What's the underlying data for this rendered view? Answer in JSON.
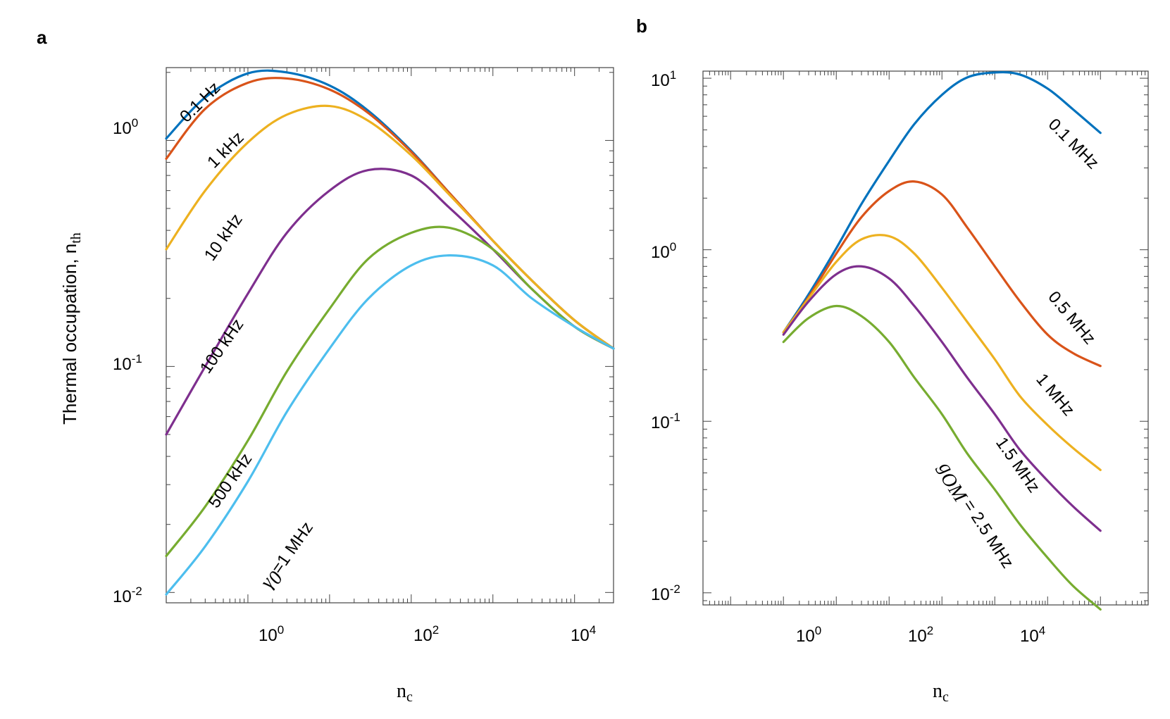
{
  "chart_data": [
    {
      "panel": "a",
      "type": "line",
      "xscale": "log",
      "yscale": "log",
      "xlabel": "n",
      "xlabel_sub": "c",
      "ylabel": "Thermal occupation, n",
      "ylabel_sub": "th",
      "xlim": [
        0.1,
        30000
      ],
      "ylim": [
        0.009,
        2.1
      ],
      "xticks": [
        {
          "base": "10",
          "exp": "0"
        },
        {
          "base": "10",
          "exp": "2"
        },
        {
          "base": "10",
          "exp": "4"
        }
      ],
      "yticks": [
        {
          "base": "10",
          "exp": "-2"
        },
        {
          "base": "10",
          "exp": "-1"
        },
        {
          "base": "10",
          "exp": "0"
        }
      ],
      "series": [
        {
          "name": "0.1 Hz",
          "color": "#0072BD",
          "x": [
            0.1,
            0.3,
            1,
            3,
            10,
            30,
            100,
            300,
            1000,
            3000,
            10000,
            30000
          ],
          "y": [
            1.02,
            1.55,
            1.98,
            2.0,
            1.75,
            1.35,
            0.9,
            0.58,
            0.36,
            0.24,
            0.16,
            0.12
          ]
        },
        {
          "name": "1 kHz",
          "color": "#D95319",
          "x": [
            0.1,
            0.3,
            1,
            3,
            10,
            30,
            100,
            300,
            1000,
            3000,
            10000,
            30000
          ],
          "y": [
            0.83,
            1.38,
            1.8,
            1.88,
            1.68,
            1.32,
            0.89,
            0.58,
            0.36,
            0.24,
            0.16,
            0.12
          ]
        },
        {
          "name": "10 kHz",
          "color": "#EDB120",
          "x": [
            0.1,
            0.3,
            1,
            3,
            10,
            30,
            100,
            300,
            1000,
            3000,
            10000,
            30000
          ],
          "y": [
            0.33,
            0.6,
            0.98,
            1.3,
            1.42,
            1.22,
            0.86,
            0.57,
            0.36,
            0.24,
            0.16,
            0.12
          ]
        },
        {
          "name": "100 kHz",
          "color": "#7E2F8E",
          "x": [
            0.1,
            0.3,
            1,
            3,
            10,
            30,
            100,
            300,
            1000,
            3000,
            10000,
            30000
          ],
          "y": [
            0.05,
            0.1,
            0.21,
            0.39,
            0.6,
            0.74,
            0.7,
            0.5,
            0.33,
            0.22,
            0.15,
            0.12
          ]
        },
        {
          "name": "500 kHz",
          "color": "#77AC30",
          "x": [
            0.1,
            0.3,
            1,
            3,
            10,
            30,
            100,
            300,
            1000,
            3000,
            10000,
            30000
          ],
          "y": [
            0.0145,
            0.024,
            0.047,
            0.095,
            0.18,
            0.3,
            0.39,
            0.41,
            0.33,
            0.22,
            0.15,
            0.12
          ]
        },
        {
          "name": "γ0 =1 MHz",
          "color": "#4DBEEE",
          "x": [
            0.1,
            0.3,
            1,
            3,
            10,
            30,
            100,
            300,
            1000,
            3000,
            10000,
            30000
          ],
          "y": [
            0.0098,
            0.016,
            0.031,
            0.063,
            0.12,
            0.2,
            0.28,
            0.31,
            0.28,
            0.2,
            0.15,
            0.12
          ]
        }
      ],
      "annotations": [
        "0.1 Hz",
        "1 kHz",
        "10 kHz",
        "100 kHz",
        "500 kHz",
        "=1 MHz"
      ],
      "annotation_greek": "γ",
      "annotation_greek_sub": "0"
    },
    {
      "panel": "b",
      "type": "line",
      "xscale": "log",
      "yscale": "log",
      "xlabel": "n",
      "xlabel_sub": "c",
      "ylabel": "",
      "xlim": [
        0.003,
        800000
      ],
      "ylim": [
        0.0085,
        11
      ],
      "xticks": [
        {
          "base": "10",
          "exp": "0"
        },
        {
          "base": "10",
          "exp": "2"
        },
        {
          "base": "10",
          "exp": "4"
        }
      ],
      "yticks": [
        {
          "base": "10",
          "exp": "-2"
        },
        {
          "base": "10",
          "exp": "-1"
        },
        {
          "base": "10",
          "exp": "0"
        },
        {
          "base": "10",
          "exp": "1"
        }
      ],
      "series": [
        {
          "name": "0.1 MHz",
          "color": "#0072BD",
          "x": [
            0.1,
            0.3,
            1,
            3,
            10,
            30,
            100,
            300,
            1000,
            3000,
            10000,
            30000,
            100000
          ],
          "y": [
            0.33,
            0.55,
            1.02,
            1.85,
            3.3,
            5.4,
            8.0,
            10.1,
            10.8,
            10.5,
            8.7,
            6.6,
            4.8
          ]
        },
        {
          "name": "0.5 MHz",
          "color": "#D95319",
          "x": [
            0.1,
            0.3,
            1,
            3,
            10,
            30,
            100,
            300,
            1000,
            3000,
            10000,
            30000,
            100000
          ],
          "y": [
            0.33,
            0.53,
            0.95,
            1.55,
            2.2,
            2.5,
            2.1,
            1.35,
            0.8,
            0.5,
            0.32,
            0.25,
            0.21
          ]
        },
        {
          "name": "1 MHz",
          "color": "#EDB120",
          "x": [
            0.1,
            0.3,
            1,
            3,
            10,
            30,
            100,
            300,
            1000,
            3000,
            10000,
            30000,
            100000
          ],
          "y": [
            0.33,
            0.52,
            0.85,
            1.15,
            1.2,
            0.95,
            0.6,
            0.38,
            0.23,
            0.14,
            0.095,
            0.07,
            0.052
          ]
        },
        {
          "name": "1.5 MHz",
          "color": "#7E2F8E",
          "x": [
            0.1,
            0.3,
            1,
            3,
            10,
            30,
            100,
            300,
            1000,
            3000,
            10000,
            30000,
            100000
          ],
          "y": [
            0.32,
            0.5,
            0.72,
            0.8,
            0.68,
            0.47,
            0.29,
            0.18,
            0.11,
            0.068,
            0.045,
            0.032,
            0.023
          ]
        },
        {
          "name": "gOM = 2.5 MHz",
          "color": "#77AC30",
          "x": [
            0.1,
            0.3,
            1,
            3,
            10,
            30,
            100,
            300,
            1000,
            3000,
            10000,
            30000,
            100000
          ],
          "y": [
            0.29,
            0.4,
            0.47,
            0.41,
            0.29,
            0.18,
            0.11,
            0.065,
            0.04,
            0.025,
            0.016,
            0.011,
            0.008
          ]
        }
      ],
      "annotations": [
        "0.1 MHz",
        "0.5 MHz",
        "1 MHz",
        "1.5 MHz",
        "= 2.5 MHz"
      ],
      "annotation_greek": "g",
      "annotation_greek_sub": "OM"
    }
  ]
}
